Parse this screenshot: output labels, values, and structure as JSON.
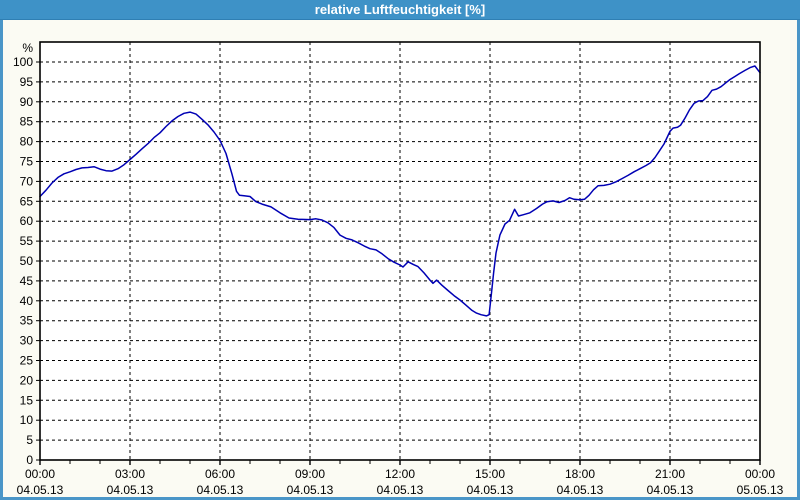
{
  "window": {
    "title": "relative Luftfeuchtigkeit [%]"
  },
  "colors": {
    "titlebar_bg": "#3E92C7",
    "titlebar_text": "#FFFFFF",
    "window_border": "#4A96C8",
    "background": "#FBFBF3",
    "plot_background": "#FFFFFF",
    "grid": "#000000",
    "frame": "#000000",
    "line": "#0000B4",
    "text": "#000000"
  },
  "chart_data": {
    "type": "line",
    "title": "relative Luftfeuchtigkeit [%]",
    "ylabel": "%",
    "xlabel": "",
    "ylim": [
      0,
      100
    ],
    "xlim_hours": [
      0,
      24
    ],
    "grid": "dashed",
    "legend": "none",
    "y_tick_step": 5,
    "y_ticks": [
      0,
      5,
      10,
      15,
      20,
      25,
      30,
      35,
      40,
      45,
      50,
      55,
      60,
      65,
      70,
      75,
      80,
      85,
      90,
      95,
      100
    ],
    "x_minor_tick_hours": 1,
    "x_ticks": [
      {
        "hour": 0,
        "time": "00:00",
        "date": "04.05.13"
      },
      {
        "hour": 3,
        "time": "03:00",
        "date": "04.05.13"
      },
      {
        "hour": 6,
        "time": "06:00",
        "date": "04.05.13"
      },
      {
        "hour": 9,
        "time": "09:00",
        "date": "04.05.13"
      },
      {
        "hour": 12,
        "time": "12:00",
        "date": "04.05.13"
      },
      {
        "hour": 15,
        "time": "15:00",
        "date": "04.05.13"
      },
      {
        "hour": 18,
        "time": "18:00",
        "date": "04.05.13"
      },
      {
        "hour": 21,
        "time": "21:00",
        "date": "04.05.13"
      },
      {
        "hour": 24,
        "time": "00:00",
        "date": "05.05.13"
      }
    ],
    "series": [
      {
        "name": "relative Luftfeuchtigkeit",
        "unit": "%",
        "points": [
          [
            0,
            66.2
          ],
          [
            0.2,
            67.8
          ],
          [
            0.4,
            69.6
          ],
          [
            0.6,
            71.0
          ],
          [
            0.8,
            71.9
          ],
          [
            1.0,
            72.4
          ],
          [
            1.2,
            73.0
          ],
          [
            1.4,
            73.4
          ],
          [
            1.6,
            73.5
          ],
          [
            1.8,
            73.7
          ],
          [
            2.0,
            73.1
          ],
          [
            2.2,
            72.7
          ],
          [
            2.4,
            72.6
          ],
          [
            2.6,
            73.2
          ],
          [
            2.8,
            74.2
          ],
          [
            3.0,
            75.5
          ],
          [
            3.2,
            76.8
          ],
          [
            3.4,
            78.2
          ],
          [
            3.6,
            79.5
          ],
          [
            3.8,
            81.0
          ],
          [
            4.0,
            82.2
          ],
          [
            4.2,
            83.8
          ],
          [
            4.4,
            85.2
          ],
          [
            4.6,
            86.3
          ],
          [
            4.8,
            87.1
          ],
          [
            5.0,
            87.4
          ],
          [
            5.2,
            86.9
          ],
          [
            5.4,
            85.6
          ],
          [
            5.6,
            84.2
          ],
          [
            5.8,
            82.4
          ],
          [
            6.0,
            80.3
          ],
          [
            6.2,
            77.0
          ],
          [
            6.4,
            71.8
          ],
          [
            6.55,
            67.5
          ],
          [
            6.65,
            66.5
          ],
          [
            6.8,
            66.4
          ],
          [
            7.0,
            66.2
          ],
          [
            7.2,
            64.9
          ],
          [
            7.4,
            64.3
          ],
          [
            7.7,
            63.6
          ],
          [
            8.0,
            62.1
          ],
          [
            8.3,
            60.8
          ],
          [
            8.6,
            60.5
          ],
          [
            9.0,
            60.4
          ],
          [
            9.2,
            60.6
          ],
          [
            9.4,
            60.3
          ],
          [
            9.6,
            59.6
          ],
          [
            9.8,
            58.4
          ],
          [
            10.0,
            56.5
          ],
          [
            10.2,
            55.7
          ],
          [
            10.4,
            55.3
          ],
          [
            10.6,
            54.6
          ],
          [
            10.8,
            53.8
          ],
          [
            11.0,
            53.1
          ],
          [
            11.2,
            52.8
          ],
          [
            11.4,
            51.8
          ],
          [
            11.6,
            50.6
          ],
          [
            11.8,
            49.7
          ],
          [
            12.0,
            49.0
          ],
          [
            12.1,
            48.5
          ],
          [
            12.27,
            49.8
          ],
          [
            12.45,
            49.1
          ],
          [
            12.6,
            48.6
          ],
          [
            12.8,
            47.0
          ],
          [
            13.0,
            45.2
          ],
          [
            13.1,
            44.4
          ],
          [
            13.22,
            45.2
          ],
          [
            13.4,
            43.9
          ],
          [
            13.6,
            42.6
          ],
          [
            13.8,
            41.3
          ],
          [
            14.0,
            40.2
          ],
          [
            14.2,
            38.9
          ],
          [
            14.4,
            37.6
          ],
          [
            14.55,
            36.9
          ],
          [
            14.7,
            36.5
          ],
          [
            14.88,
            36.2
          ],
          [
            14.97,
            36.5
          ],
          [
            15.05,
            42.0
          ],
          [
            15.12,
            47.0
          ],
          [
            15.2,
            52.0
          ],
          [
            15.33,
            56.5
          ],
          [
            15.5,
            59.3
          ],
          [
            15.65,
            60.2
          ],
          [
            15.82,
            63.0
          ],
          [
            15.95,
            61.3
          ],
          [
            16.1,
            61.6
          ],
          [
            16.33,
            62.1
          ],
          [
            16.55,
            63.2
          ],
          [
            16.75,
            64.3
          ],
          [
            16.9,
            64.9
          ],
          [
            17.1,
            65.1
          ],
          [
            17.3,
            64.7
          ],
          [
            17.5,
            65.2
          ],
          [
            17.65,
            65.9
          ],
          [
            17.8,
            65.5
          ],
          [
            18.0,
            65.4
          ],
          [
            18.15,
            65.5
          ],
          [
            18.3,
            66.5
          ],
          [
            18.45,
            67.9
          ],
          [
            18.6,
            68.9
          ],
          [
            18.8,
            69.0
          ],
          [
            19.0,
            69.3
          ],
          [
            19.2,
            69.9
          ],
          [
            19.4,
            70.7
          ],
          [
            19.6,
            71.5
          ],
          [
            19.8,
            72.4
          ],
          [
            20.0,
            73.2
          ],
          [
            20.2,
            74.0
          ],
          [
            20.35,
            74.7
          ],
          [
            20.5,
            76.0
          ],
          [
            20.65,
            77.7
          ],
          [
            20.8,
            79.4
          ],
          [
            21.0,
            82.6
          ],
          [
            21.1,
            83.4
          ],
          [
            21.25,
            83.6
          ],
          [
            21.35,
            84.1
          ],
          [
            21.5,
            85.9
          ],
          [
            21.65,
            88.0
          ],
          [
            21.8,
            89.6
          ],
          [
            21.95,
            90.2
          ],
          [
            22.1,
            90.3
          ],
          [
            22.25,
            91.3
          ],
          [
            22.4,
            92.9
          ],
          [
            22.55,
            93.2
          ],
          [
            22.7,
            93.8
          ],
          [
            22.85,
            94.7
          ],
          [
            23.0,
            95.6
          ],
          [
            23.15,
            96.3
          ],
          [
            23.3,
            97.0
          ],
          [
            23.5,
            97.9
          ],
          [
            23.67,
            98.6
          ],
          [
            23.83,
            99.0
          ],
          [
            24.0,
            97.3
          ]
        ]
      }
    ]
  }
}
